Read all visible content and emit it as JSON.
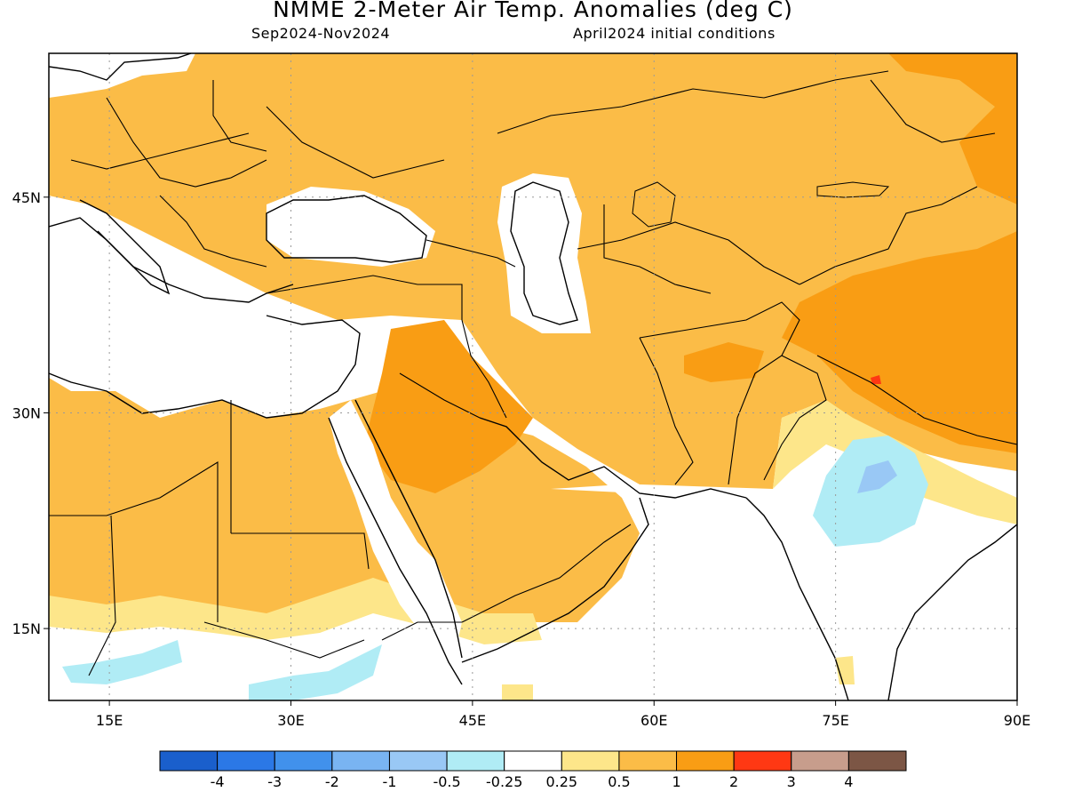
{
  "title": "NMME 2-Meter Air Temp. Anomalies (deg C)",
  "subtitle_left": "Sep2024-Nov2024",
  "subtitle_right": "April2024 initial conditions",
  "map": {
    "lon_range": [
      10,
      90
    ],
    "lat_range": [
      10,
      55
    ],
    "lon_ticks": [
      {
        "value": 15,
        "label": "15E"
      },
      {
        "value": 30,
        "label": "30E"
      },
      {
        "value": 45,
        "label": "45E"
      },
      {
        "value": 60,
        "label": "60E"
      },
      {
        "value": 75,
        "label": "75E"
      },
      {
        "value": 90,
        "label": "90E"
      }
    ],
    "lat_ticks": [
      {
        "value": 45,
        "label": "45N"
      },
      {
        "value": 30,
        "label": "30N"
      },
      {
        "value": 15,
        "label": "15N"
      }
    ],
    "gridlines": "dotted"
  },
  "colorbar": {
    "colors": [
      "#1a5fcc",
      "#2b78e6",
      "#4191ec",
      "#79b4f2",
      "#99c8f5",
      "#b0ecf5",
      "#ffffff",
      "#fde68a",
      "#fbbc47",
      "#f99d14",
      "#ff3813",
      "#c79d8c",
      "#7c5645"
    ],
    "labels": [
      "-4",
      "-3",
      "-2",
      "-1",
      "-0.5",
      "-0.25",
      "0.25",
      "0.5",
      "1",
      "2",
      "3",
      "4"
    ]
  }
}
